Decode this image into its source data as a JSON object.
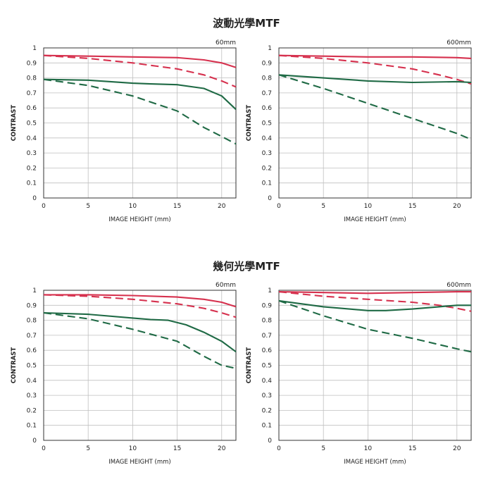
{
  "sections": [
    {
      "title": "波動光學MTF"
    },
    {
      "title": "幾何光學MTF"
    }
  ],
  "chart_data": [
    {
      "type": "line",
      "section": 0,
      "lens": "60mm",
      "xlabel": "IMAGE HEIGHT (mm)",
      "ylabel": "CONTRAST",
      "xlim": [
        0,
        21.6
      ],
      "ylim": [
        0,
        1
      ],
      "xticks": [
        0,
        5,
        10,
        15,
        20
      ],
      "yticks": [
        0,
        0.1,
        0.2,
        0.3,
        0.4,
        0.5,
        0.6,
        0.7,
        0.8,
        0.9,
        1
      ],
      "grid": true,
      "series": [
        {
          "color": "#d6314e",
          "dash": false,
          "x": [
            0,
            5,
            10,
            15,
            18,
            20,
            21.6
          ],
          "y": [
            0.95,
            0.945,
            0.94,
            0.935,
            0.92,
            0.9,
            0.87
          ]
        },
        {
          "color": "#d6314e",
          "dash": true,
          "x": [
            0,
            5,
            10,
            15,
            18,
            20,
            21.6
          ],
          "y": [
            0.95,
            0.93,
            0.9,
            0.86,
            0.82,
            0.78,
            0.74
          ]
        },
        {
          "color": "#1f6a45",
          "dash": false,
          "x": [
            0,
            5,
            10,
            12,
            15,
            18,
            20,
            21.6
          ],
          "y": [
            0.79,
            0.785,
            0.765,
            0.76,
            0.755,
            0.73,
            0.68,
            0.59
          ]
        },
        {
          "color": "#1f6a45",
          "dash": true,
          "x": [
            0,
            5,
            10,
            15,
            18,
            20,
            21.6
          ],
          "y": [
            0.79,
            0.75,
            0.68,
            0.58,
            0.47,
            0.41,
            0.36
          ]
        }
      ]
    },
    {
      "type": "line",
      "section": 0,
      "lens": "600mm",
      "xlabel": "IMAGE HEIGHT (mm)",
      "ylabel": "CONTRAST",
      "xlim": [
        0,
        21.6
      ],
      "ylim": [
        0,
        1
      ],
      "xticks": [
        0,
        5,
        10,
        15,
        20
      ],
      "yticks": [
        0,
        0.1,
        0.2,
        0.3,
        0.4,
        0.5,
        0.6,
        0.7,
        0.8,
        0.9,
        1
      ],
      "grid": true,
      "series": [
        {
          "color": "#d6314e",
          "dash": false,
          "x": [
            0,
            5,
            10,
            15,
            20,
            21.6
          ],
          "y": [
            0.95,
            0.945,
            0.94,
            0.94,
            0.935,
            0.93
          ]
        },
        {
          "color": "#d6314e",
          "dash": true,
          "x": [
            0,
            5,
            10,
            15,
            18,
            20,
            21.6
          ],
          "y": [
            0.95,
            0.93,
            0.9,
            0.86,
            0.82,
            0.79,
            0.76
          ]
        },
        {
          "color": "#1f6a45",
          "dash": false,
          "x": [
            0,
            5,
            10,
            15,
            20,
            21.6
          ],
          "y": [
            0.82,
            0.8,
            0.78,
            0.77,
            0.775,
            0.77
          ]
        },
        {
          "color": "#1f6a45",
          "dash": true,
          "x": [
            0,
            5,
            10,
            15,
            20,
            21.6
          ],
          "y": [
            0.82,
            0.73,
            0.63,
            0.53,
            0.43,
            0.39
          ]
        }
      ]
    },
    {
      "type": "line",
      "section": 1,
      "lens": "60mm",
      "xlabel": "IMAGE HEIGHT (mm)",
      "ylabel": "CONTRAST",
      "xlim": [
        0,
        21.6
      ],
      "ylim": [
        0,
        1
      ],
      "xticks": [
        0,
        5,
        10,
        15,
        20
      ],
      "yticks": [
        0,
        0.1,
        0.2,
        0.3,
        0.4,
        0.5,
        0.6,
        0.7,
        0.8,
        0.9,
        1
      ],
      "grid": true,
      "series": [
        {
          "color": "#d6314e",
          "dash": false,
          "x": [
            0,
            5,
            10,
            15,
            18,
            20,
            21.6
          ],
          "y": [
            0.97,
            0.97,
            0.965,
            0.955,
            0.94,
            0.92,
            0.89
          ]
        },
        {
          "color": "#d6314e",
          "dash": true,
          "x": [
            0,
            5,
            10,
            15,
            18,
            20,
            21.6
          ],
          "y": [
            0.97,
            0.96,
            0.94,
            0.91,
            0.88,
            0.85,
            0.82
          ]
        },
        {
          "color": "#1f6a45",
          "dash": false,
          "x": [
            0,
            5,
            10,
            12,
            14,
            16,
            18,
            20,
            21.6
          ],
          "y": [
            0.85,
            0.84,
            0.815,
            0.805,
            0.8,
            0.77,
            0.72,
            0.66,
            0.59
          ]
        },
        {
          "color": "#1f6a45",
          "dash": true,
          "x": [
            0,
            5,
            10,
            15,
            18,
            20,
            21.6
          ],
          "y": [
            0.85,
            0.81,
            0.74,
            0.66,
            0.56,
            0.5,
            0.48
          ]
        }
      ]
    },
    {
      "type": "line",
      "section": 1,
      "lens": "600mm",
      "xlabel": "IMAGE HEIGHT (mm)",
      "ylabel": "CONTRAST",
      "xlim": [
        0,
        21.6
      ],
      "ylim": [
        0,
        1
      ],
      "xticks": [
        0,
        5,
        10,
        15,
        20
      ],
      "yticks": [
        0,
        0.1,
        0.2,
        0.3,
        0.4,
        0.5,
        0.6,
        0.7,
        0.8,
        0.9,
        1
      ],
      "grid": true,
      "series": [
        {
          "color": "#d6314e",
          "dash": false,
          "x": [
            0,
            5,
            10,
            15,
            20,
            21.6
          ],
          "y": [
            0.99,
            0.985,
            0.98,
            0.985,
            0.99,
            0.99
          ]
        },
        {
          "color": "#d6314e",
          "dash": true,
          "x": [
            0,
            5,
            10,
            15,
            18,
            20,
            21.6
          ],
          "y": [
            0.99,
            0.96,
            0.94,
            0.92,
            0.9,
            0.88,
            0.86
          ]
        },
        {
          "color": "#1f6a45",
          "dash": false,
          "x": [
            0,
            5,
            10,
            12,
            15,
            18,
            20,
            21.6
          ],
          "y": [
            0.93,
            0.89,
            0.865,
            0.865,
            0.875,
            0.89,
            0.9,
            0.9
          ]
        },
        {
          "color": "#1f6a45",
          "dash": true,
          "x": [
            0,
            5,
            10,
            15,
            20,
            21.6
          ],
          "y": [
            0.93,
            0.83,
            0.74,
            0.68,
            0.61,
            0.59
          ]
        }
      ]
    }
  ]
}
